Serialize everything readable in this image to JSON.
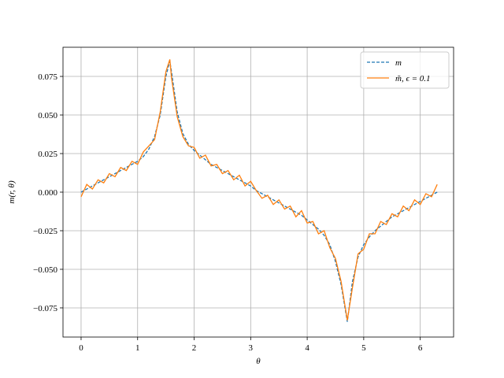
{
  "chart_data": {
    "type": "line",
    "xlabel": "θ",
    "ylabel": "m(r, θ)",
    "x": [
      0,
      0.1,
      0.2,
      0.3,
      0.4,
      0.5,
      0.6,
      0.7,
      0.8,
      0.9,
      1.0,
      1.1,
      1.2,
      1.3,
      1.4,
      1.5,
      1.57,
      1.6,
      1.7,
      1.8,
      1.9,
      2.0,
      2.1,
      2.2,
      2.3,
      2.4,
      2.5,
      2.6,
      2.7,
      2.8,
      2.9,
      3.0,
      3.1,
      3.2,
      3.3,
      3.4,
      3.5,
      3.6,
      3.7,
      3.8,
      3.9,
      4.0,
      4.1,
      4.2,
      4.3,
      4.4,
      4.5,
      4.6,
      4.71,
      4.8,
      4.9,
      5.0,
      5.1,
      5.2,
      5.3,
      5.4,
      5.5,
      5.6,
      5.7,
      5.8,
      5.9,
      6.0,
      6.1,
      6.2,
      6.3
    ],
    "series": [
      {
        "name": "m",
        "color": "#1f77b4",
        "dashed": true,
        "values": [
          0,
          0.002,
          0.004,
          0.006,
          0.008,
          0.01,
          0.012,
          0.014,
          0.016,
          0.018,
          0.02,
          0.023,
          0.028,
          0.036,
          0.05,
          0.075,
          0.085,
          0.078,
          0.052,
          0.038,
          0.031,
          0.027,
          0.024,
          0.021,
          0.018,
          0.016,
          0.014,
          0.012,
          0.01,
          0.008,
          0.006,
          0.004,
          0.001,
          -0.001,
          -0.003,
          -0.005,
          -0.007,
          -0.009,
          -0.011,
          -0.013,
          -0.015,
          -0.018,
          -0.021,
          -0.024,
          -0.028,
          -0.034,
          -0.045,
          -0.06,
          -0.084,
          -0.058,
          -0.042,
          -0.034,
          -0.029,
          -0.025,
          -0.022,
          -0.019,
          -0.016,
          -0.014,
          -0.012,
          -0.01,
          -0.008,
          -0.006,
          -0.004,
          -0.002,
          0
        ]
      },
      {
        "name": "m̃, ϵ = 0.1",
        "color": "#ff7f0e",
        "dashed": false,
        "values": [
          -0.003,
          0.005,
          0.002,
          0.008,
          0.006,
          0.012,
          0.01,
          0.016,
          0.014,
          0.02,
          0.018,
          0.026,
          0.03,
          0.034,
          0.052,
          0.078,
          0.086,
          0.074,
          0.049,
          0.036,
          0.03,
          0.029,
          0.022,
          0.024,
          0.017,
          0.018,
          0.012,
          0.014,
          0.008,
          0.011,
          0.004,
          0.007,
          0.001,
          -0.004,
          -0.002,
          -0.008,
          -0.005,
          -0.011,
          -0.009,
          -0.016,
          -0.012,
          -0.02,
          -0.019,
          -0.027,
          -0.025,
          -0.036,
          -0.043,
          -0.058,
          -0.083,
          -0.062,
          -0.04,
          -0.037,
          -0.027,
          -0.027,
          -0.019,
          -0.021,
          -0.014,
          -0.016,
          -0.009,
          -0.012,
          -0.005,
          -0.008,
          -0.001,
          -0.003,
          0.005
        ]
      }
    ],
    "xlim": [
      -0.32,
      6.59
    ],
    "ylim": [
      -0.0939,
      0.0939
    ],
    "xticks": [
      0,
      1,
      2,
      3,
      4,
      5,
      6
    ],
    "yticks": [
      {
        "value": -0.075,
        "label": "−0.075"
      },
      {
        "value": -0.05,
        "label": "−0.050"
      },
      {
        "value": -0.025,
        "label": "−0.025"
      },
      {
        "value": 0,
        "label": "0.000"
      },
      0.025,
      {
        "value": 0.05,
        "label": "0.050"
      },
      0.075
    ],
    "grid": true,
    "legend": "upper right"
  }
}
